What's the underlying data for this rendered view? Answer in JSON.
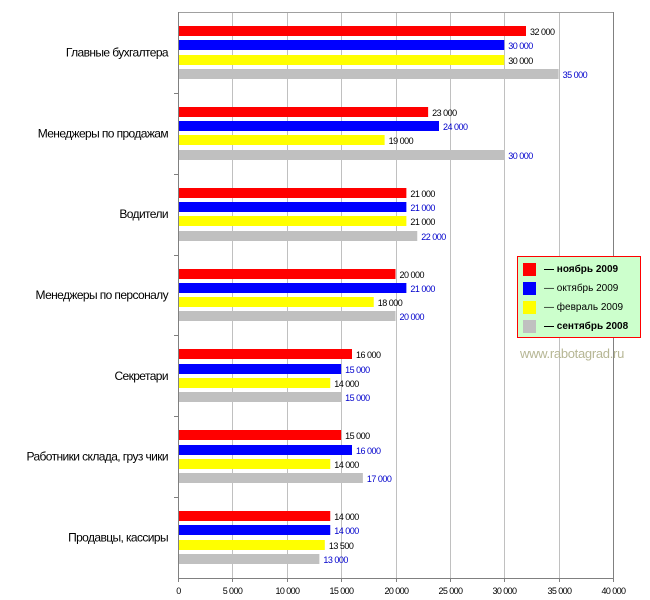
{
  "chart_data": {
    "type": "bar",
    "orientation": "horizontal",
    "title": "",
    "xlabel": "",
    "ylabel": "",
    "xlim": [
      0,
      40000
    ],
    "x_ticks": [
      0,
      5000,
      10000,
      15000,
      20000,
      25000,
      30000,
      35000,
      40000
    ],
    "x_tick_labels": [
      "0",
      "5 000",
      "10 000",
      "15 000",
      "20 000",
      "25 000",
      "30 000",
      "35 000",
      "40 000"
    ],
    "grid": true,
    "legend_position": "right",
    "categories": [
      "Главные бухгалтера",
      "Менеджеры по продажам",
      "Водители",
      "Менеджеры по персоналу",
      "Секретари",
      "Работники склада, груз чики",
      "Продавцы, кассиры"
    ],
    "series": [
      {
        "name": "— ноябрь 2009",
        "color": "#ff0000",
        "label_color": "#000000",
        "bold": true,
        "values": [
          32000,
          23000,
          21000,
          20000,
          16000,
          15000,
          14000
        ],
        "labels": [
          "32 000",
          "23 000",
          "21 000",
          "20 000",
          "16 000",
          "15 000",
          "14 000"
        ]
      },
      {
        "name": "— октябрь 2009",
        "color": "#0000ff",
        "label_color": "#0000cc",
        "bold": false,
        "values": [
          30000,
          24000,
          21000,
          21000,
          15000,
          16000,
          14000
        ],
        "labels": [
          "30 000",
          "24 000",
          "21 000",
          "21 000",
          "15 000",
          "16 000",
          "14 000"
        ]
      },
      {
        "name": "— февраль 2009",
        "color": "#ffff00",
        "label_color": "#000000",
        "bold": false,
        "values": [
          30000,
          19000,
          21000,
          18000,
          14000,
          14000,
          13500
        ],
        "labels": [
          "30 000",
          "19 000",
          "21 000",
          "18 000",
          "14 000",
          "14 000",
          "13 500"
        ]
      },
      {
        "name": "— сентябрь 2008",
        "color": "#c0c0c0",
        "label_color": "#0000cc",
        "bold": true,
        "values": [
          35000,
          30000,
          22000,
          20000,
          15000,
          17000,
          13000
        ],
        "labels": [
          "35 000",
          "30 000",
          "22 000",
          "20 000",
          "15 000",
          "17 000",
          "13 000"
        ]
      }
    ]
  },
  "watermark": "www.rabotagrad.ru"
}
